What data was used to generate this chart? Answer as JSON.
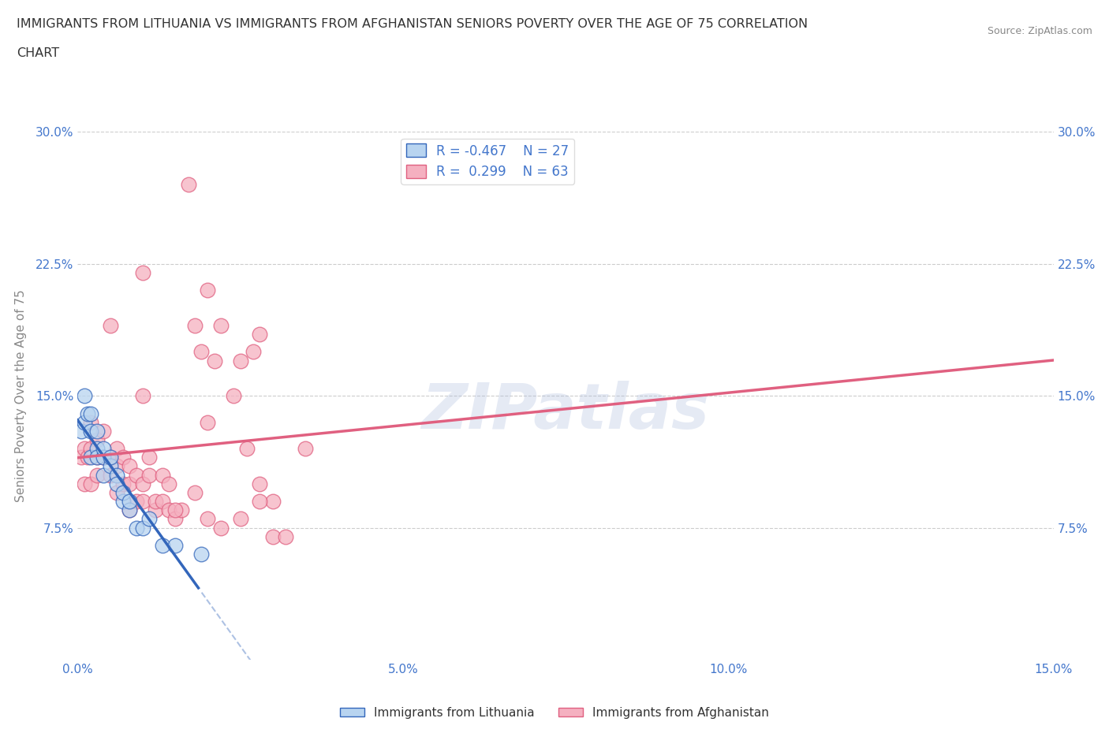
{
  "title_line1": "IMMIGRANTS FROM LITHUANIA VS IMMIGRANTS FROM AFGHANISTAN SENIORS POVERTY OVER THE AGE OF 75 CORRELATION",
  "title_line2": "CHART",
  "source": "Source: ZipAtlas.com",
  "ylabel": "Seniors Poverty Over the Age of 75",
  "xlim": [
    0.0,
    0.15
  ],
  "ylim": [
    0.0,
    0.3
  ],
  "xtick_vals": [
    0.0,
    0.05,
    0.1,
    0.15
  ],
  "xtick_labels": [
    "0.0%",
    "5.0%",
    "10.0%",
    "15.0%"
  ],
  "ytick_values": [
    0.0,
    0.075,
    0.15,
    0.225,
    0.3
  ],
  "ytick_labels": [
    "",
    "7.5%",
    "15.0%",
    "22.5%",
    "30.0%"
  ],
  "grid_yticks": [
    0.075,
    0.15,
    0.225,
    0.3
  ],
  "watermark": "ZIPatlas",
  "legend_r1": "R = -0.467",
  "legend_n1": "N = 27",
  "legend_r2": "R =  0.299",
  "legend_n2": "N = 63",
  "color_lithuania": "#b8d4f0",
  "color_afghanistan": "#f5b0c0",
  "color_line_lithuania": "#3366bb",
  "color_line_afghanistan": "#e06080",
  "color_ticks": "#4477cc",
  "background": "#ffffff",
  "lithuania_x": [
    0.0005,
    0.001,
    0.001,
    0.0015,
    0.002,
    0.002,
    0.002,
    0.003,
    0.003,
    0.003,
    0.004,
    0.004,
    0.004,
    0.005,
    0.005,
    0.006,
    0.006,
    0.007,
    0.007,
    0.008,
    0.008,
    0.009,
    0.01,
    0.011,
    0.013,
    0.015,
    0.019
  ],
  "lithuania_y": [
    0.13,
    0.15,
    0.135,
    0.14,
    0.115,
    0.13,
    0.14,
    0.12,
    0.13,
    0.115,
    0.115,
    0.105,
    0.12,
    0.11,
    0.115,
    0.105,
    0.1,
    0.09,
    0.095,
    0.085,
    0.09,
    0.075,
    0.075,
    0.08,
    0.065,
    0.065,
    0.06
  ],
  "afghanistan_x": [
    0.0005,
    0.001,
    0.001,
    0.0015,
    0.002,
    0.002,
    0.002,
    0.003,
    0.003,
    0.003,
    0.004,
    0.004,
    0.005,
    0.005,
    0.005,
    0.006,
    0.006,
    0.006,
    0.007,
    0.007,
    0.008,
    0.008,
    0.008,
    0.009,
    0.009,
    0.01,
    0.01,
    0.011,
    0.011,
    0.012,
    0.012,
    0.013,
    0.013,
    0.014,
    0.014,
    0.015,
    0.016,
    0.017,
    0.018,
    0.019,
    0.02,
    0.021,
    0.022,
    0.024,
    0.026,
    0.028,
    0.03,
    0.005,
    0.01,
    0.015,
    0.02,
    0.025,
    0.027,
    0.028,
    0.03,
    0.032,
    0.035,
    0.02,
    0.028,
    0.01,
    0.025,
    0.018,
    0.022
  ],
  "afghanistan_y": [
    0.115,
    0.12,
    0.1,
    0.115,
    0.12,
    0.135,
    0.1,
    0.115,
    0.125,
    0.105,
    0.115,
    0.13,
    0.115,
    0.105,
    0.115,
    0.11,
    0.095,
    0.12,
    0.1,
    0.115,
    0.085,
    0.1,
    0.11,
    0.09,
    0.105,
    0.09,
    0.1,
    0.105,
    0.115,
    0.085,
    0.09,
    0.105,
    0.09,
    0.085,
    0.1,
    0.08,
    0.085,
    0.27,
    0.19,
    0.175,
    0.135,
    0.17,
    0.19,
    0.15,
    0.12,
    0.1,
    0.09,
    0.19,
    0.15,
    0.085,
    0.08,
    0.08,
    0.175,
    0.185,
    0.07,
    0.07,
    0.12,
    0.21,
    0.09,
    0.22,
    0.17,
    0.095,
    0.075
  ]
}
